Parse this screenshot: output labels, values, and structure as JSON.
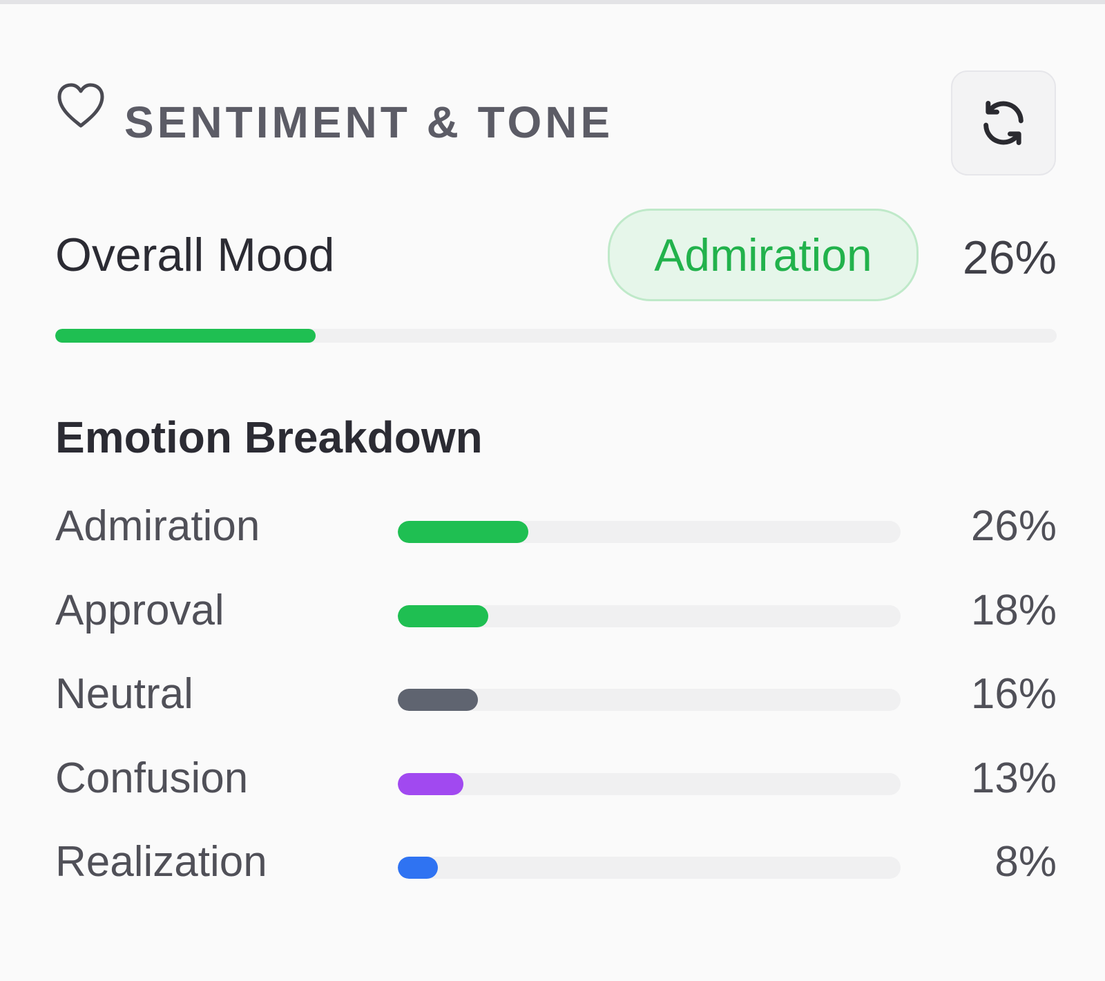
{
  "panel": {
    "title": "SENTIMENT & TONE",
    "heart_icon": "heart-icon",
    "refresh_icon": "refresh-icon"
  },
  "overall_mood": {
    "label": "Overall Mood",
    "badge": "Admiration",
    "value_text": "26%",
    "value": 26,
    "color": "#1fbf52"
  },
  "breakdown": {
    "title": "Emotion Breakdown",
    "emotions": [
      {
        "label": "Admiration",
        "value_text": "26%",
        "value": 26,
        "color": "#1fbf52"
      },
      {
        "label": "Approval",
        "value_text": "18%",
        "value": 18,
        "color": "#1fbf52"
      },
      {
        "label": "Neutral",
        "value_text": "16%",
        "value": 16,
        "color": "#5f6470"
      },
      {
        "label": "Confusion",
        "value_text": "13%",
        "value": 13,
        "color": "#a149f0"
      },
      {
        "label": "Realization",
        "value_text": "8%",
        "value": 8,
        "color": "#2f73f2"
      }
    ]
  }
}
